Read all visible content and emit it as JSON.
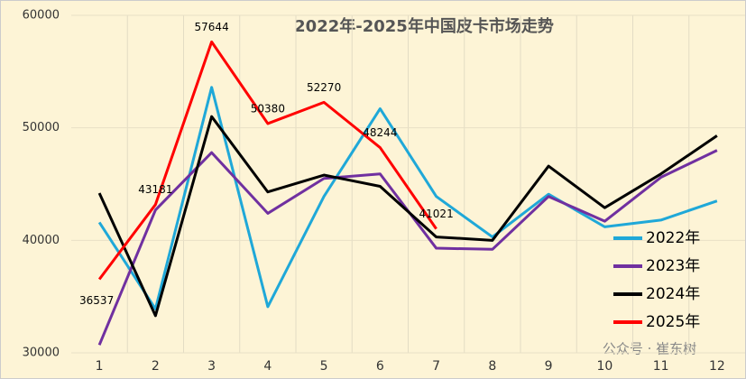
{
  "chart_data": {
    "type": "line",
    "title": "2022年-2025年中国皮卡市场走势",
    "categories": [
      "1",
      "2",
      "3",
      "4",
      "5",
      "6",
      "7",
      "8",
      "9",
      "10",
      "11",
      "12"
    ],
    "series": [
      {
        "name": "2022年",
        "color": "#1fa8d8",
        "values": [
          41600,
          33900,
          53600,
          34100,
          43900,
          51700,
          43900,
          40300,
          44100,
          41200,
          41800,
          43500
        ]
      },
      {
        "name": "2023年",
        "color": "#7030a0",
        "values": [
          30700,
          42700,
          47800,
          42400,
          45500,
          45900,
          39300,
          39200,
          43900,
          41700,
          45600,
          48000
        ]
      },
      {
        "name": "2024年",
        "color": "#000000",
        "values": [
          44200,
          33300,
          51000,
          44300,
          45800,
          44800,
          40300,
          40000,
          46600,
          42900,
          45900,
          49300
        ]
      },
      {
        "name": "2025年",
        "color": "#ff0000",
        "values": [
          36537,
          43181,
          57644,
          50380,
          52270,
          48244,
          41021,
          null,
          null,
          null,
          null,
          null
        ],
        "data_labels": true
      }
    ],
    "ylim": [
      30000,
      60000
    ],
    "yticks": [
      30000,
      40000,
      50000,
      60000
    ],
    "legend": "right",
    "watermark": "公众号 · 崔东树"
  }
}
